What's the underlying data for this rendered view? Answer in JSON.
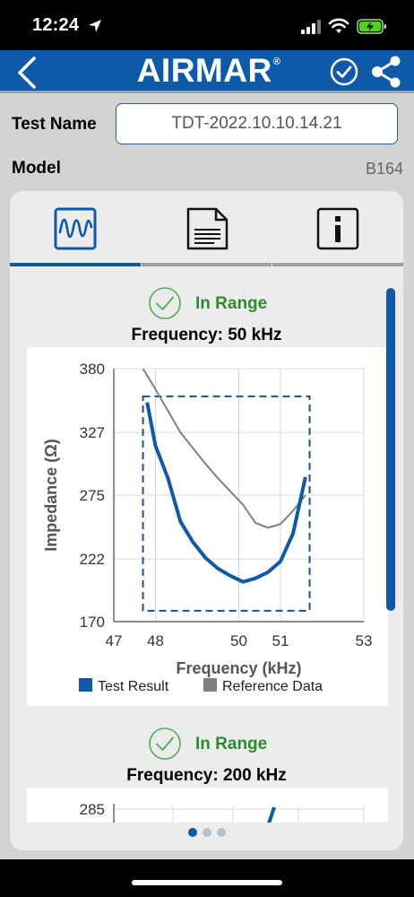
{
  "status_bar": {
    "time": "12:24"
  },
  "header": {
    "brand": "AIRMAR",
    "brand_mark": "®"
  },
  "form": {
    "test_name_label": "Test Name",
    "test_name_value": "TDT-2022.10.10.14.21",
    "model_label": "Model",
    "model_value": "B164"
  },
  "tabs": [
    {
      "icon": "waveform-icon",
      "active": true
    },
    {
      "icon": "document-icon",
      "active": false
    },
    {
      "icon": "info-icon",
      "active": false
    }
  ],
  "sections": [
    {
      "status": "In Range",
      "frequency_title": "Frequency: 50 kHz"
    },
    {
      "status": "In Range",
      "frequency_title": "Frequency: 200 kHz"
    }
  ],
  "colors": {
    "brand": "#0e5aa8",
    "in_range": "#2e8b2e",
    "test_series": "#0e5aa8",
    "reference_series": "#808080"
  },
  "pager": {
    "count": 3,
    "active": 0
  },
  "chart_data": [
    {
      "type": "line",
      "xlabel": "Frequency (kHz)",
      "ylabel": "Impedance (Ω)",
      "xlim": [
        47,
        53
      ],
      "ylim": [
        170,
        380
      ],
      "x_ticks": [
        "47",
        "48",
        "50",
        "51",
        "53"
      ],
      "y_ticks": [
        "380",
        "327",
        "275",
        "222",
        "170"
      ],
      "x_tick_values": [
        47,
        48,
        50,
        51,
        53
      ],
      "y_tick_values": [
        380,
        327,
        275,
        222,
        170
      ],
      "grid": true,
      "legend": "bottom",
      "pass_window": {
        "x": [
          47.7,
          51.7
        ],
        "y": [
          179,
          357
        ]
      },
      "series": [
        {
          "name": "Test Result",
          "x": [
            47.8,
            48.0,
            48.3,
            48.6,
            48.9,
            49.2,
            49.5,
            49.8,
            50.1,
            50.4,
            50.7,
            51.0,
            51.3,
            51.6
          ],
          "y": [
            352,
            316,
            289,
            253,
            236,
            223,
            214,
            208,
            203,
            206,
            211,
            220,
            243,
            290
          ]
        },
        {
          "name": "Reference Data",
          "x": [
            47.7,
            48.0,
            48.3,
            48.6,
            48.9,
            49.2,
            49.5,
            49.8,
            50.1,
            50.4,
            50.7,
            51.0,
            51.3,
            51.6
          ],
          "y": [
            380,
            363,
            345,
            327,
            314,
            301,
            289,
            278,
            267,
            252,
            248,
            251,
            262,
            275
          ]
        }
      ]
    },
    {
      "type": "line",
      "xlabel": "",
      "ylabel": "",
      "y_ticks": [
        "285"
      ],
      "grid": true
    }
  ]
}
